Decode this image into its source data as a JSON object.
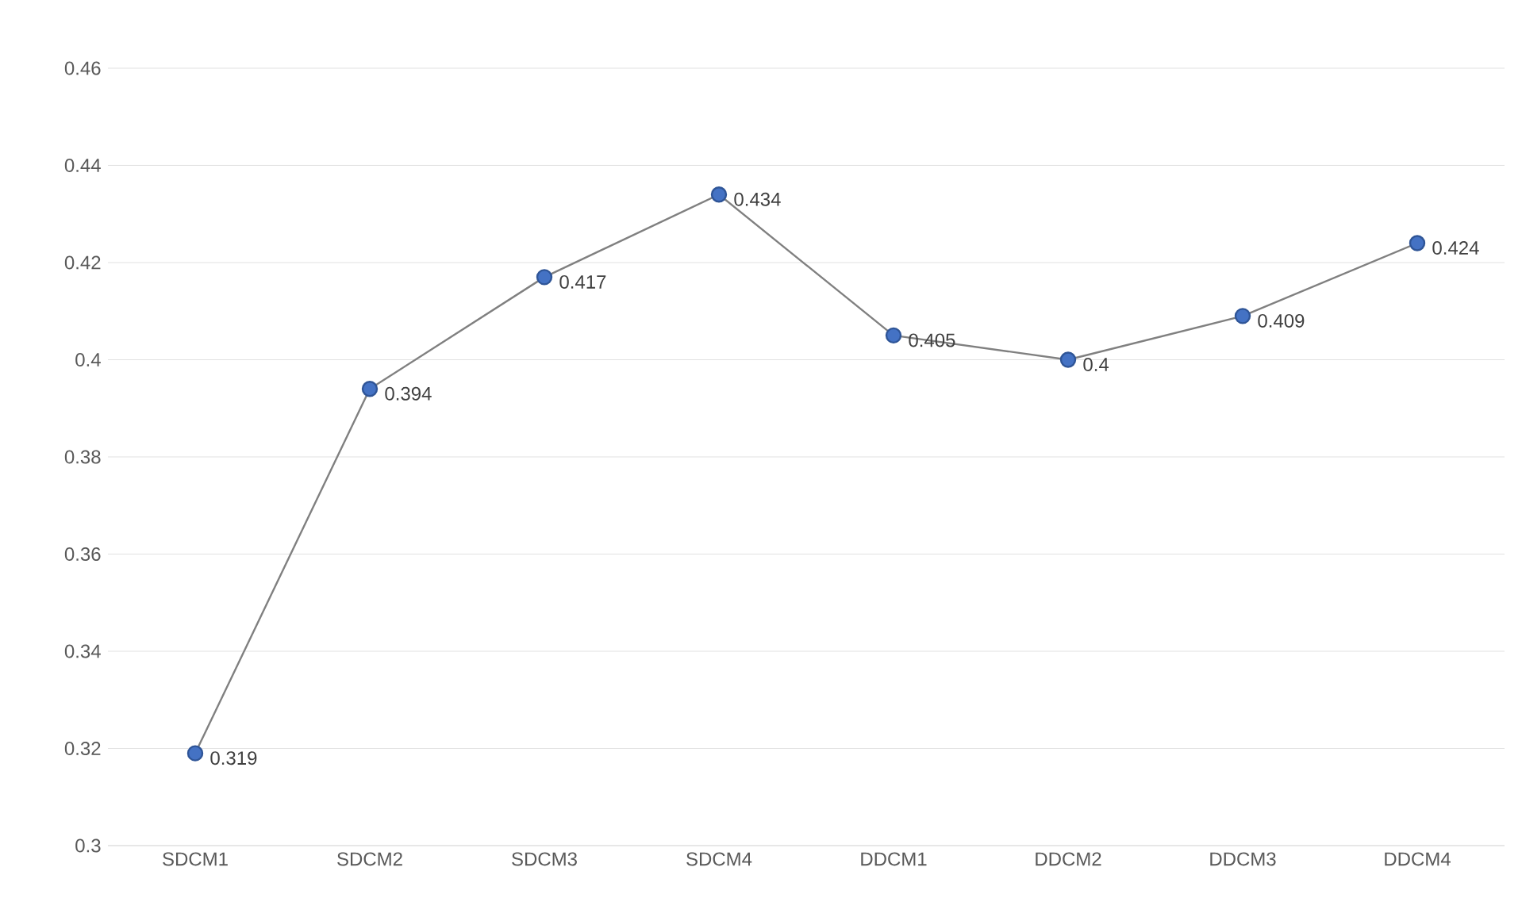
{
  "chart_data": {
    "type": "line",
    "categories": [
      "SDCM1",
      "SDCM2",
      "SDCM3",
      "SDCM4",
      "DDCM1",
      "DDCM2",
      "DDCM3",
      "DDCM4"
    ],
    "series": [
      {
        "color": "#4472c4",
        "values": [
          0.319,
          0.394,
          0.417,
          0.434,
          0.405,
          0.4,
          0.409,
          0.424
        ]
      }
    ],
    "ylim": [
      0.3,
      0.46
    ],
    "yticks": [
      0.3,
      0.32,
      0.34,
      0.36,
      0.38,
      0.4,
      0.42,
      0.44,
      0.46
    ],
    "grid": "y",
    "marker": "circle",
    "line_style": "solid",
    "data_labels": true
  }
}
